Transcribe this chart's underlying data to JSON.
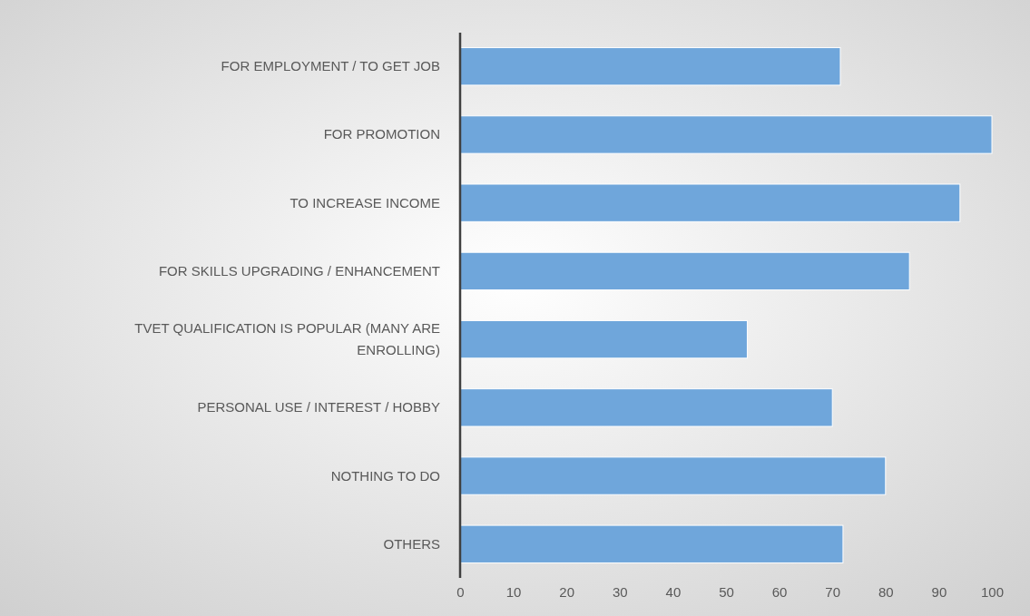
{
  "chart_data": {
    "type": "bar",
    "orientation": "horizontal",
    "categories": [
      "FOR EMPLOYMENT / TO GET JOB",
      "FOR PROMOTION",
      "TO INCREASE INCOME",
      "FOR SKILLS UPGRADING / ENHANCEMENT",
      "TVET QUALIFICATION IS POPULAR (MANY ARE ENROLLING)",
      "PERSONAL USE / INTEREST / HOBBY",
      "NOTHING TO DO",
      "OTHERS"
    ],
    "values": [
      71.5,
      100,
      94,
      84.5,
      54,
      70,
      80,
      72
    ],
    "color": "#6fa6db",
    "xlim": [
      0,
      100
    ],
    "xticks": [
      0,
      10,
      20,
      30,
      40,
      50,
      60,
      70,
      80,
      90,
      100
    ]
  }
}
